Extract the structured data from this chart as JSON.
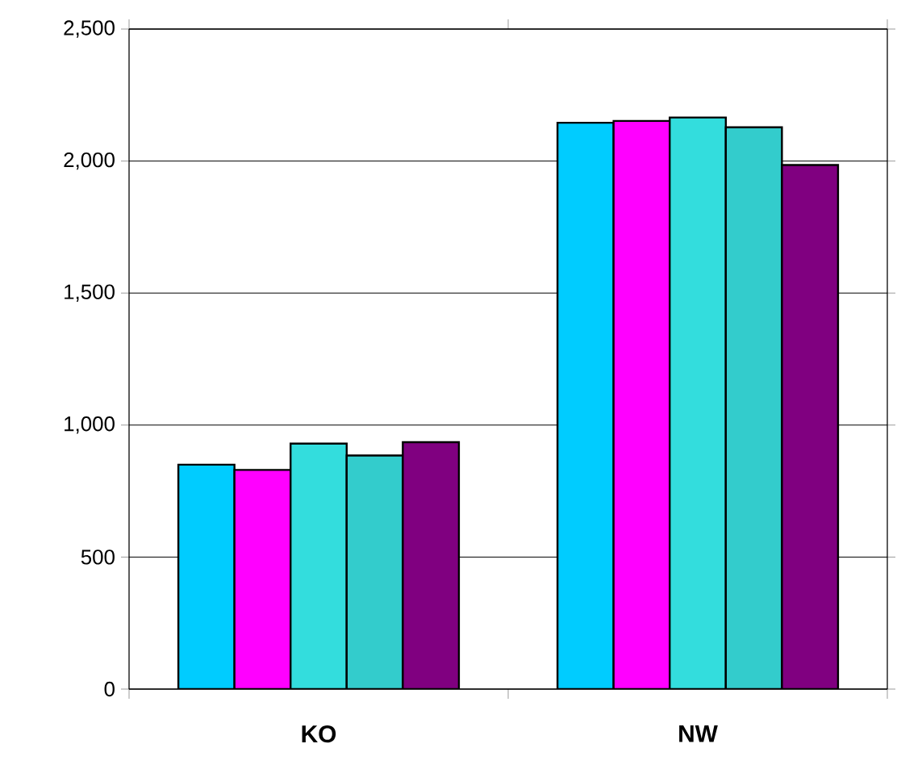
{
  "chart_data": {
    "type": "bar",
    "categories": [
      "KO",
      "NW"
    ],
    "series": [
      {
        "color": "#00ccff",
        "values": [
          850,
          2145
        ]
      },
      {
        "color": "#ff00ff",
        "values": [
          830,
          2152
        ]
      },
      {
        "color": "#33dddd",
        "values": [
          930,
          2165
        ]
      },
      {
        "color": "#33cccc",
        "values": [
          885,
          2128
        ]
      },
      {
        "color": "#800080",
        "values": [
          935,
          1985
        ]
      }
    ],
    "ylim": [
      0,
      2500
    ],
    "yticks": [
      0,
      500,
      {
        "value": 1000,
        "label": "1,000"
      },
      {
        "value": 1500,
        "label": "1,500"
      },
      {
        "value": 2000,
        "label": "2,000"
      },
      {
        "value": 2500,
        "label": "2,500"
      }
    ],
    "grid": "y"
  }
}
